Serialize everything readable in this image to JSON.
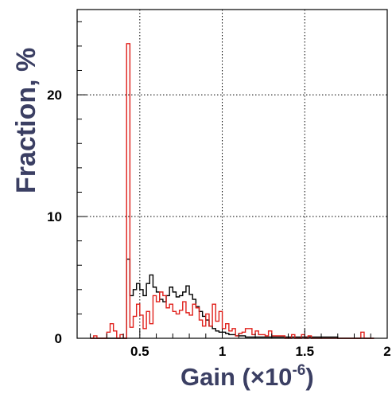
{
  "chart_data": {
    "type": "histogram",
    "xlabel": "Gain (×10",
    "xlabel_exponent": "-6",
    "xlabel_close": ")",
    "ylabel": "Fraction, %",
    "xlim": [
      0.12,
      2.0
    ],
    "ylim": [
      0,
      27
    ],
    "grid": "dotted",
    "x_ticks": [
      0.5,
      1,
      1.5,
      2
    ],
    "x_tick_labels": [
      "0.5",
      "1",
      "1.5",
      "2"
    ],
    "y_ticks": [
      0,
      10,
      20
    ],
    "y_tick_labels": [
      "0",
      "10",
      "20"
    ],
    "bin_width": 0.02,
    "bin_start": 0.2,
    "series": [
      {
        "color": "#000000",
        "values": [
          0,
          0,
          0,
          0,
          0,
          0,
          0,
          0,
          0,
          0,
          0,
          6.5,
          3.5,
          4.0,
          4.5,
          4.0,
          3.5,
          4.5,
          5.2,
          4.2,
          3.8,
          3.2,
          3.0,
          3.5,
          4.2,
          3.8,
          3.4,
          3.5,
          3.8,
          4.3,
          3.6,
          3.2,
          2.6,
          2.2,
          1.8,
          1.5,
          1.0,
          0.8,
          0.6,
          0.5,
          0.5,
          0.4,
          0.3,
          0.3,
          0.2,
          0.2,
          0.2,
          0.1,
          0.1,
          0.1,
          0.1,
          0.1,
          0.1,
          0.1,
          0.1,
          0.1,
          0.1,
          0.1,
          0.1,
          0.1,
          0.1,
          0.1,
          0.1,
          0.1,
          0.1,
          0.1,
          0.1,
          0.1,
          0.1,
          0.1,
          0.1,
          0.1,
          0.1,
          0.1,
          0.1,
          0,
          0,
          0,
          0,
          0,
          0,
          0,
          0,
          0,
          0,
          0
        ]
      },
      {
        "color": "#e0201b",
        "values": [
          0,
          0.2,
          0,
          0,
          0,
          0.5,
          1.2,
          0.6,
          0,
          0.3,
          0,
          24.2,
          0.9,
          1.8,
          2.8,
          1.9,
          0.8,
          2.2,
          1.2,
          3.5,
          3.0,
          3.8,
          3.5,
          2.5,
          2.8,
          2.2,
          2.0,
          2.3,
          3.0,
          2.1,
          1.9,
          2.8,
          2.5,
          1.5,
          1.0,
          2.0,
          1.0,
          2.8,
          1.4,
          2.2,
          0.8,
          1.2,
          0.6,
          0.8,
          0.2,
          0.4,
          0.5,
          0.8,
          0.8,
          0.3,
          0.6,
          0.3,
          0.3,
          0.2,
          0.6,
          0.2,
          0.2,
          0.2,
          0.2,
          0,
          0,
          0.3,
          0,
          0,
          0.3,
          0,
          0.2,
          0,
          0,
          0,
          0,
          0,
          0,
          0,
          0,
          0,
          0,
          0,
          0,
          0,
          0,
          0,
          0.5,
          0,
          0,
          0
        ]
      }
    ]
  }
}
